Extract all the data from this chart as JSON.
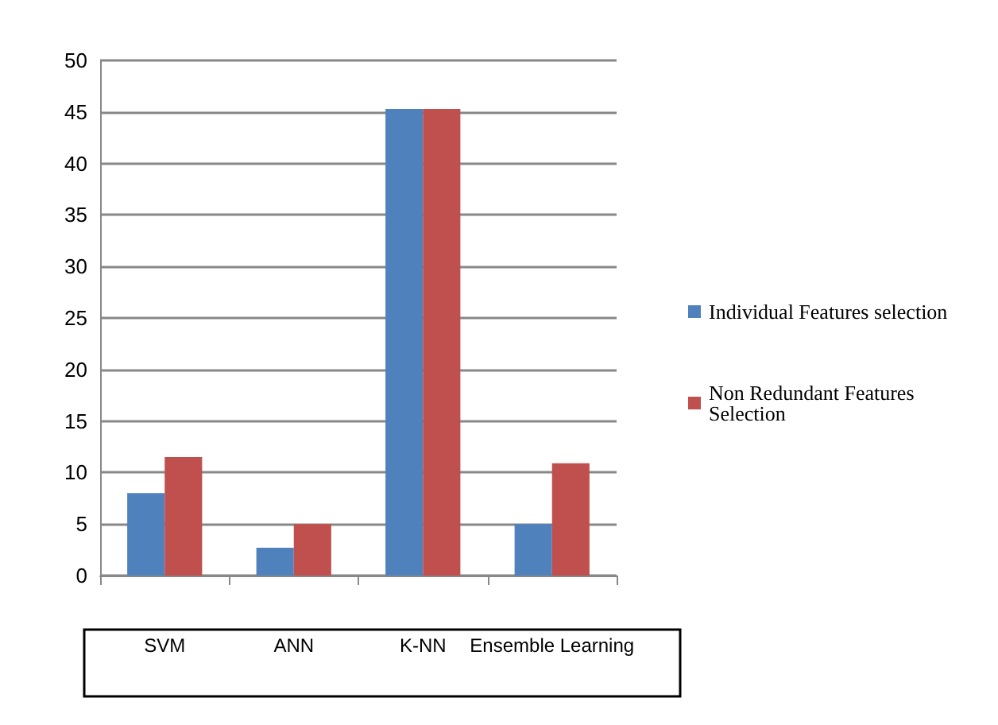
{
  "chart_data": {
    "type": "bar",
    "categories": [
      "SVM",
      "ANN",
      "K-NN",
      "Ensemble Learning"
    ],
    "series": [
      {
        "name": "Individual Features selection",
        "color": "#4f81bd",
        "values": [
          8,
          2.7,
          45.3,
          5
        ]
      },
      {
        "name": "Non Redundant Features Selection",
        "color": "#c0504d",
        "values": [
          11.5,
          5,
          45.3,
          10.9
        ]
      }
    ],
    "ylim": [
      0,
      50
    ],
    "yticks": [
      0,
      5,
      10,
      15,
      20,
      25,
      30,
      35,
      40,
      45,
      50
    ],
    "grid": "y",
    "legend": "right"
  }
}
